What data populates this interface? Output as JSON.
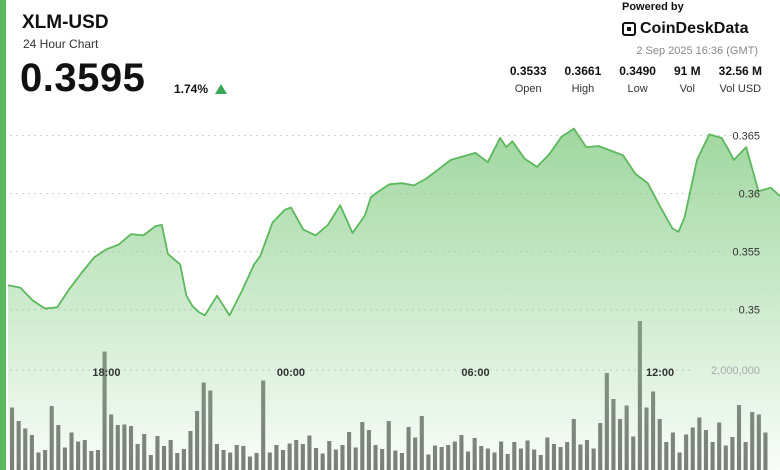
{
  "header": {
    "pair": "XLM-USD",
    "subtitle": "24 Hour Chart",
    "price": "0.3595",
    "change": "1.74%",
    "powered_by": "Powered by",
    "brand": "CoinDeskData",
    "timestamp": "2 Sep 2025 16:36 (GMT)"
  },
  "stats": [
    {
      "value": "0.3533",
      "label": "Open"
    },
    {
      "value": "0.3661",
      "label": "High"
    },
    {
      "value": "0.3490",
      "label": "Low"
    },
    {
      "value": "91 M",
      "label": "Vol"
    },
    {
      "value": "32.56 M",
      "label": "Vol USD"
    }
  ],
  "colors": {
    "accent": "#5cb85c",
    "line": "#5cb85c",
    "area": "#b9e0b9",
    "volume": "#6b6b6b",
    "up": "#3aa655"
  },
  "icons": {
    "trend": "triangle-up-icon",
    "brand": "coindesk-logo-icon"
  },
  "chart_data": {
    "type": "area",
    "xlabel": "",
    "ylabel": "",
    "x_ticks": [
      {
        "label": "18:00",
        "x": 2
      },
      {
        "label": "00:00",
        "x": 8
      },
      {
        "label": "06:00",
        "x": 14
      },
      {
        "label": "12:00",
        "x": 20
      }
    ],
    "xlim": [
      -1.2,
      23.9
    ],
    "y_ticks": [
      0.35,
      0.355,
      0.36,
      0.365
    ],
    "y_tick_labels": [
      "0.35",
      "0.355",
      "0.36",
      "0.365"
    ],
    "ylim": [
      0.3448,
      0.3672
    ],
    "grid": "horizontal dashed",
    "price": {
      "x": [
        -1.2,
        -0.8,
        -0.4,
        0.0,
        0.4,
        0.8,
        1.2,
        1.6,
        2.0,
        2.4,
        2.8,
        3.2,
        3.6,
        3.8,
        4.0,
        4.4,
        4.6,
        4.8,
        5.0,
        5.2,
        5.6,
        6.0,
        6.4,
        6.8,
        7.0,
        7.4,
        7.8,
        8.0,
        8.4,
        8.8,
        9.2,
        9.6,
        10.0,
        10.4,
        10.6,
        10.8,
        11.2,
        11.6,
        12.0,
        12.4,
        12.8,
        13.2,
        13.6,
        14.0,
        14.4,
        14.8,
        15.0,
        15.2,
        15.6,
        16.0,
        16.4,
        16.8,
        17.2,
        17.6,
        18.0,
        18.4,
        18.8,
        19.2,
        19.6,
        20.0,
        20.4,
        20.6,
        20.8,
        21.2,
        21.6,
        22.0,
        22.2,
        22.4,
        22.8,
        23.2,
        23.6,
        23.9
      ],
      "y": [
        0.3521,
        0.3519,
        0.3508,
        0.3501,
        0.3502,
        0.3518,
        0.3532,
        0.3545,
        0.3552,
        0.3556,
        0.3565,
        0.3564,
        0.3572,
        0.3573,
        0.3548,
        0.3539,
        0.3512,
        0.3503,
        0.3498,
        0.3495,
        0.3512,
        0.3495,
        0.3516,
        0.3539,
        0.3546,
        0.3575,
        0.3586,
        0.3588,
        0.3569,
        0.3564,
        0.3573,
        0.359,
        0.3566,
        0.3581,
        0.3597,
        0.3601,
        0.3608,
        0.3609,
        0.3607,
        0.3613,
        0.3621,
        0.3629,
        0.3632,
        0.3635,
        0.3627,
        0.3648,
        0.364,
        0.3645,
        0.363,
        0.3623,
        0.3634,
        0.3649,
        0.3656,
        0.364,
        0.3641,
        0.3637,
        0.3633,
        0.3617,
        0.3609,
        0.3589,
        0.357,
        0.3567,
        0.358,
        0.3629,
        0.3651,
        0.3648,
        0.3639,
        0.3629,
        0.364,
        0.3602,
        0.3605,
        0.3598
      ]
    },
    "volume": {
      "y_tick": 2000000,
      "y_tick_label": "2,000,000",
      "max": 3000000,
      "values": [
        1250000,
        980000,
        830000,
        700000,
        350000,
        400000,
        1280000,
        900000,
        450000,
        750000,
        570000,
        600000,
        380000,
        400000,
        2370000,
        1110000,
        900000,
        910000,
        880000,
        520000,
        720000,
        300000,
        680000,
        480000,
        600000,
        340000,
        420000,
        780000,
        1180000,
        1750000,
        1590000,
        520000,
        400000,
        350000,
        500000,
        480000,
        270000,
        340000,
        1790000,
        350000,
        500000,
        400000,
        530000,
        600000,
        520000,
        690000,
        440000,
        330000,
        580000,
        410000,
        500000,
        760000,
        450000,
        960000,
        800000,
        500000,
        420000,
        980000,
        390000,
        340000,
        860000,
        650000,
        1080000,
        310000,
        490000,
        460000,
        500000,
        570000,
        700000,
        370000,
        640000,
        480000,
        430000,
        350000,
        570000,
        320000,
        560000,
        430000,
        590000,
        410000,
        300000,
        650000,
        520000,
        460000,
        560000,
        1020000,
        510000,
        600000,
        430000,
        940000,
        1940000,
        1420000,
        1020000,
        1290000,
        670000,
        2980000,
        1250000,
        1570000,
        1020000,
        560000,
        750000,
        350000,
        710000,
        850000,
        1050000,
        800000,
        560000,
        950000,
        490000,
        660000,
        1300000,
        560000,
        1160000,
        1110000,
        750000
      ]
    }
  }
}
